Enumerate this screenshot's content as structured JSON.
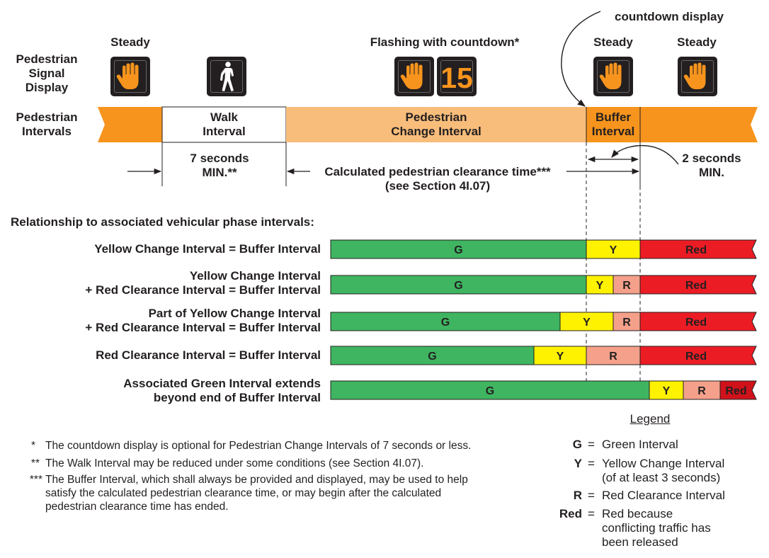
{
  "header": {
    "ped_signal_display": [
      "Pedestrian",
      "Signal",
      "Display"
    ],
    "ped_intervals": [
      "Pedestrian",
      "Intervals"
    ],
    "steady_label": "Steady",
    "flashing_label": "Flashing with countdown*",
    "countdown_display_label": "countdown display",
    "countdown_value": "15"
  },
  "intervals": {
    "walk": [
      "Walk",
      "Interval"
    ],
    "change": [
      "Pedestrian",
      "Change Interval"
    ],
    "buffer": [
      "Buffer",
      "Interval"
    ]
  },
  "durations": {
    "walk_min": [
      "7 seconds",
      "MIN.**"
    ],
    "clearance": [
      "Calculated pedestrian clearance time***",
      "(see Section 4I.07)"
    ],
    "buffer_min": [
      "2 seconds",
      "MIN."
    ]
  },
  "relationship_title": "Relationship to associated vehicular phase intervals:",
  "rows": [
    {
      "label": [
        "Yellow Change Interval = Buffer Interval"
      ],
      "segments": [
        {
          "code": "G",
          "kind": "green"
        },
        {
          "code": "Y",
          "kind": "yellow"
        },
        {
          "code": "Red",
          "kind": "red"
        }
      ]
    },
    {
      "label": [
        "Yellow Change Interval",
        "+ Red Clearance Interval = Buffer Interval"
      ],
      "segments": [
        {
          "code": "G",
          "kind": "green"
        },
        {
          "code": "Y",
          "kind": "yellow"
        },
        {
          "code": "R",
          "kind": "redclear"
        },
        {
          "code": "Red",
          "kind": "red"
        }
      ]
    },
    {
      "label": [
        "Part of Yellow Change Interval",
        "+ Red Clearance Interval = Buffer Interval"
      ],
      "segments": [
        {
          "code": "G",
          "kind": "green"
        },
        {
          "code": "Y",
          "kind": "yellow"
        },
        {
          "code": "R",
          "kind": "redclear"
        },
        {
          "code": "Red",
          "kind": "red"
        }
      ]
    },
    {
      "label": [
        "Red Clearance Interval = Buffer Interval"
      ],
      "segments": [
        {
          "code": "G",
          "kind": "green"
        },
        {
          "code": "Y",
          "kind": "yellow"
        },
        {
          "code": "R",
          "kind": "redclear"
        },
        {
          "code": "Red",
          "kind": "red"
        }
      ]
    },
    {
      "label": [
        "Associated Green Interval extends",
        "beyond end of Buffer Interval"
      ],
      "segments": [
        {
          "code": "G",
          "kind": "green"
        },
        {
          "code": "Y",
          "kind": "yellow"
        },
        {
          "code": "R",
          "kind": "redclear"
        },
        {
          "code": "Red",
          "kind": "redend"
        }
      ]
    }
  ],
  "colors": {
    "green": "#3fb561",
    "yellow": "#fff200",
    "redclear": "#f5a08a",
    "red": "#ec1c24",
    "redend": "#d0121b",
    "ped_orange": "#f7941d",
    "ped_light": "#f9bd7b",
    "signal_hand": "#f7941d",
    "signal_walk": "#ffffff",
    "signal_box": "#231f20",
    "countdown_digits": "#f7941d"
  },
  "footnotes": [
    {
      "mark": "*",
      "lines": [
        "The countdown display is optional for Pedestrian Change Intervals of 7 seconds or less."
      ]
    },
    {
      "mark": "**",
      "lines": [
        "The Walk Interval may be reduced under some conditions (see Section 4I.07)."
      ]
    },
    {
      "mark": "***",
      "lines": [
        "The Buffer Interval, which shall always be provided and displayed, may be used to help",
        "satisfy the calculated pedestrian clearance time, or may begin after the calculated",
        "pedestrian clearance time has ended."
      ]
    }
  ],
  "legend": {
    "title": "Legend",
    "items": [
      {
        "code": "G",
        "lines": [
          "Green Interval"
        ]
      },
      {
        "code": "Y",
        "lines": [
          "Yellow Change Interval",
          "(of at least 3 seconds)"
        ]
      },
      {
        "code": "R",
        "lines": [
          "Red Clearance Interval"
        ]
      },
      {
        "code": "Red",
        "lines": [
          "Red because",
          "conflicting traffic has",
          "been released"
        ]
      }
    ]
  }
}
